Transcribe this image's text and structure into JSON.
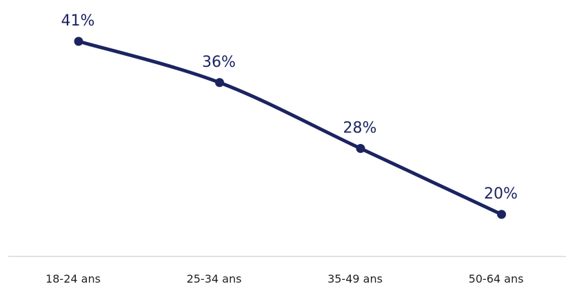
{
  "chart_data": {
    "type": "line",
    "categories": [
      "18-24 ans",
      "25-34 ans",
      "35-49 ans",
      "50-64 ans"
    ],
    "series": [
      {
        "values": [
          41,
          36,
          28,
          20
        ],
        "labels": [
          "41%",
          "36%",
          "28%",
          "20%"
        ],
        "color": "#1b2460"
      }
    ],
    "title": "",
    "xlabel": "",
    "ylabel": "",
    "ylim": [
      0,
      45
    ],
    "grid": false,
    "legend": "none",
    "colors": {
      "line": "#1b2460",
      "axis": "#d9d9d9",
      "tick_text": "#1f1f1f"
    }
  }
}
